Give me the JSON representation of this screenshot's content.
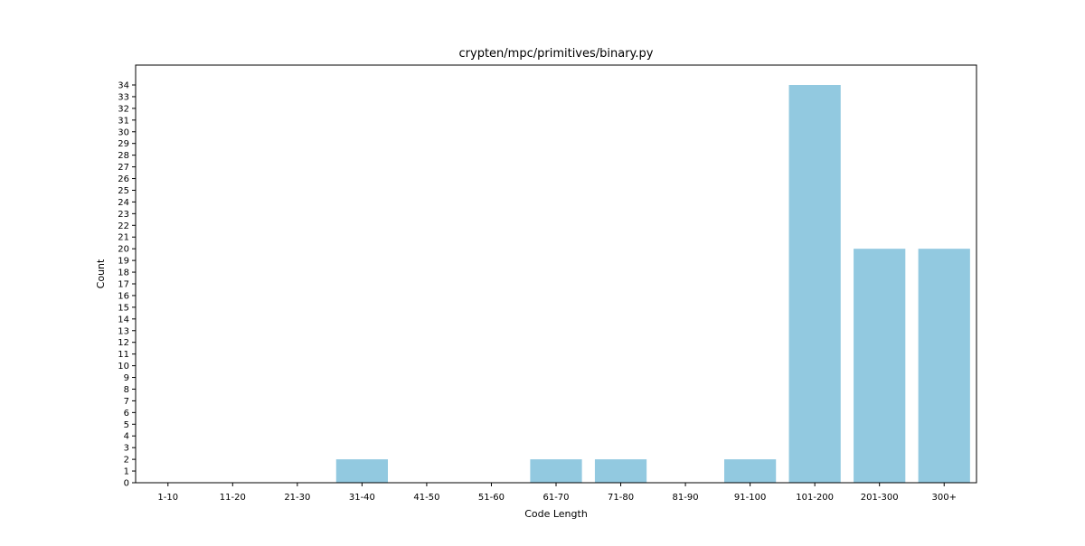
{
  "chart_data": {
    "type": "bar",
    "title": "crypten/mpc/primitives/binary.py",
    "xlabel": "Code Length",
    "ylabel": "Count",
    "categories": [
      "1-10",
      "11-20",
      "21-30",
      "31-40",
      "41-50",
      "51-60",
      "61-70",
      "71-80",
      "81-90",
      "91-100",
      "101-200",
      "201-300",
      "300+"
    ],
    "values": [
      0,
      0,
      0,
      2,
      0,
      0,
      2,
      2,
      0,
      2,
      34,
      20,
      20
    ],
    "ylim": [
      0,
      35.7
    ],
    "yticks": [
      0,
      1,
      2,
      3,
      4,
      5,
      6,
      7,
      8,
      9,
      10,
      11,
      12,
      13,
      14,
      15,
      16,
      17,
      18,
      19,
      20,
      21,
      22,
      23,
      24,
      25,
      26,
      27,
      28,
      29,
      30,
      31,
      32,
      33,
      34
    ],
    "bar_color": "#92c9e0",
    "grid": false,
    "legend": "none"
  }
}
